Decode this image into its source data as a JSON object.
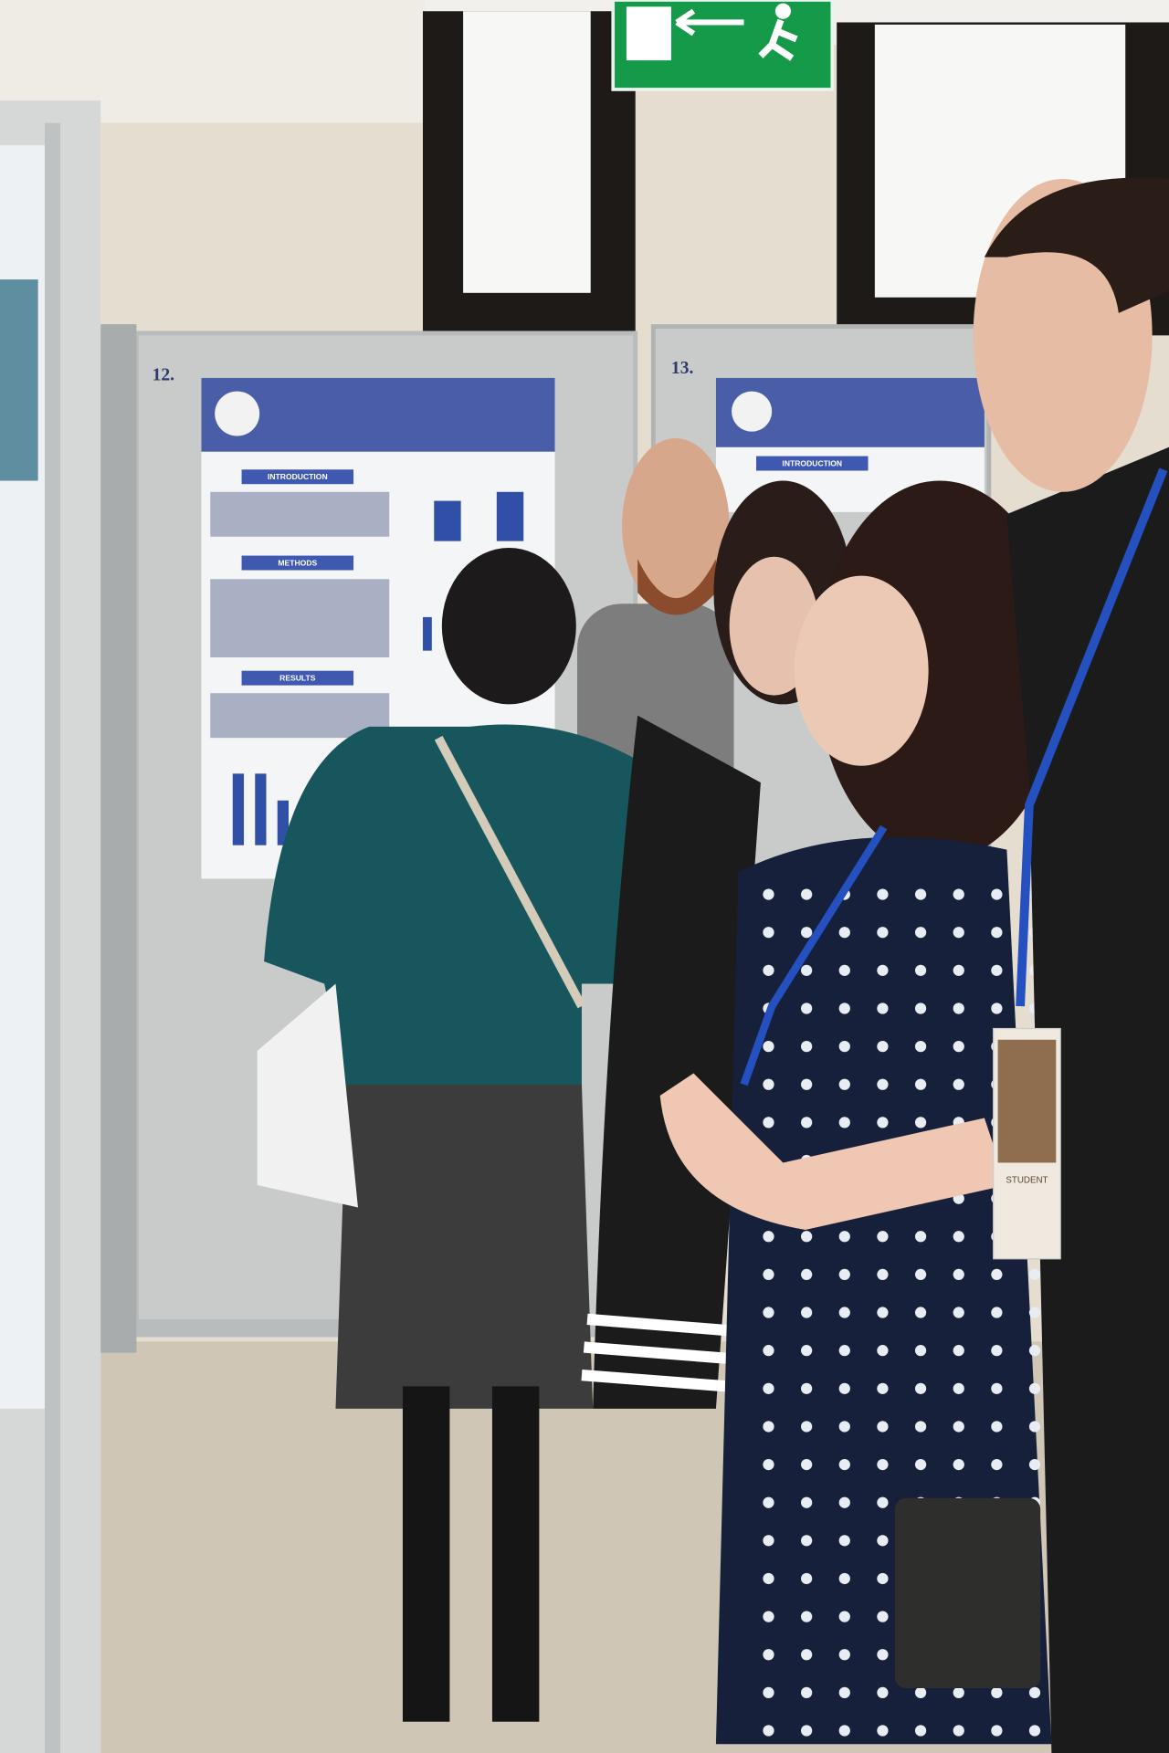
{
  "scene": {
    "panel_numbers": [
      "12.",
      "13."
    ],
    "poster_12": {
      "sections": [
        "INTRODUCTION",
        "METHODS",
        "RESULTS"
      ]
    },
    "poster_13": {
      "sections": [
        "INTRODUCTION"
      ]
    },
    "badge": {
      "role": "STUDENT"
    }
  }
}
